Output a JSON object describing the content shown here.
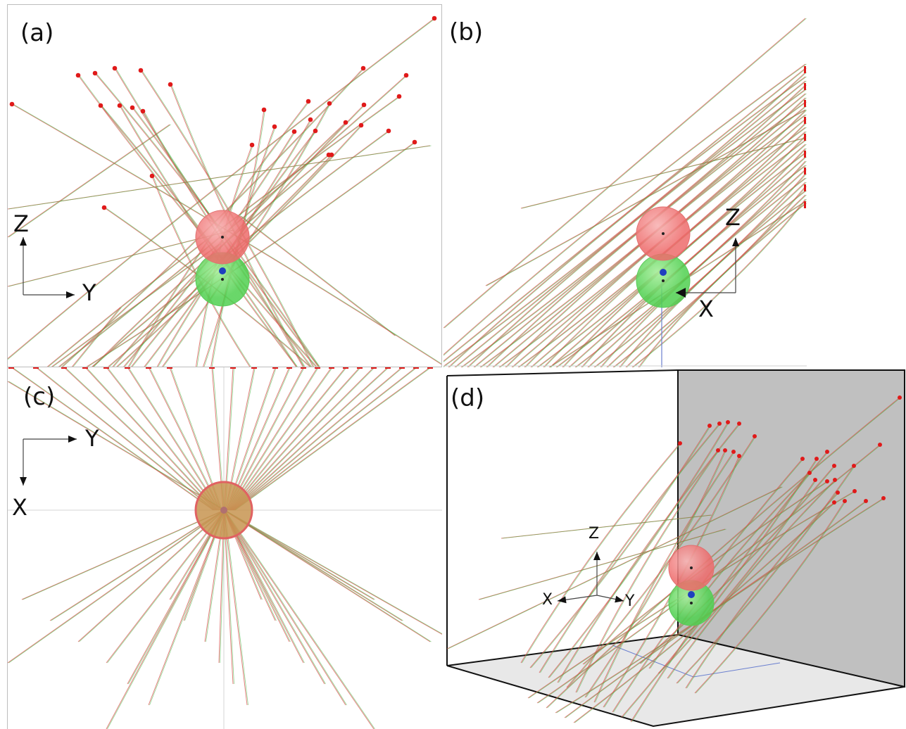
{
  "panels": {
    "a": {
      "label": "(a)",
      "axis_h": "Y",
      "axis_v": "Z"
    },
    "b": {
      "label": "(b)",
      "axis_h": "X",
      "axis_v": "Z"
    },
    "c": {
      "label": "(c)",
      "axis_h": "Y",
      "axis_v": "X"
    },
    "d": {
      "label": "(d)",
      "axis_x": "X",
      "axis_y": "Y",
      "axis_z": "Z"
    }
  },
  "colors": {
    "track_red": "#d9534f",
    "track_green": "#3fb53f",
    "endpoint": "#e01a1a",
    "upper_sphere": "#ee6b6b",
    "lower_sphere": "#4fd04f",
    "center_dot": "#1f3fbf",
    "back_wall": "#c0c0c0",
    "floor": "#e8e8e8"
  }
}
